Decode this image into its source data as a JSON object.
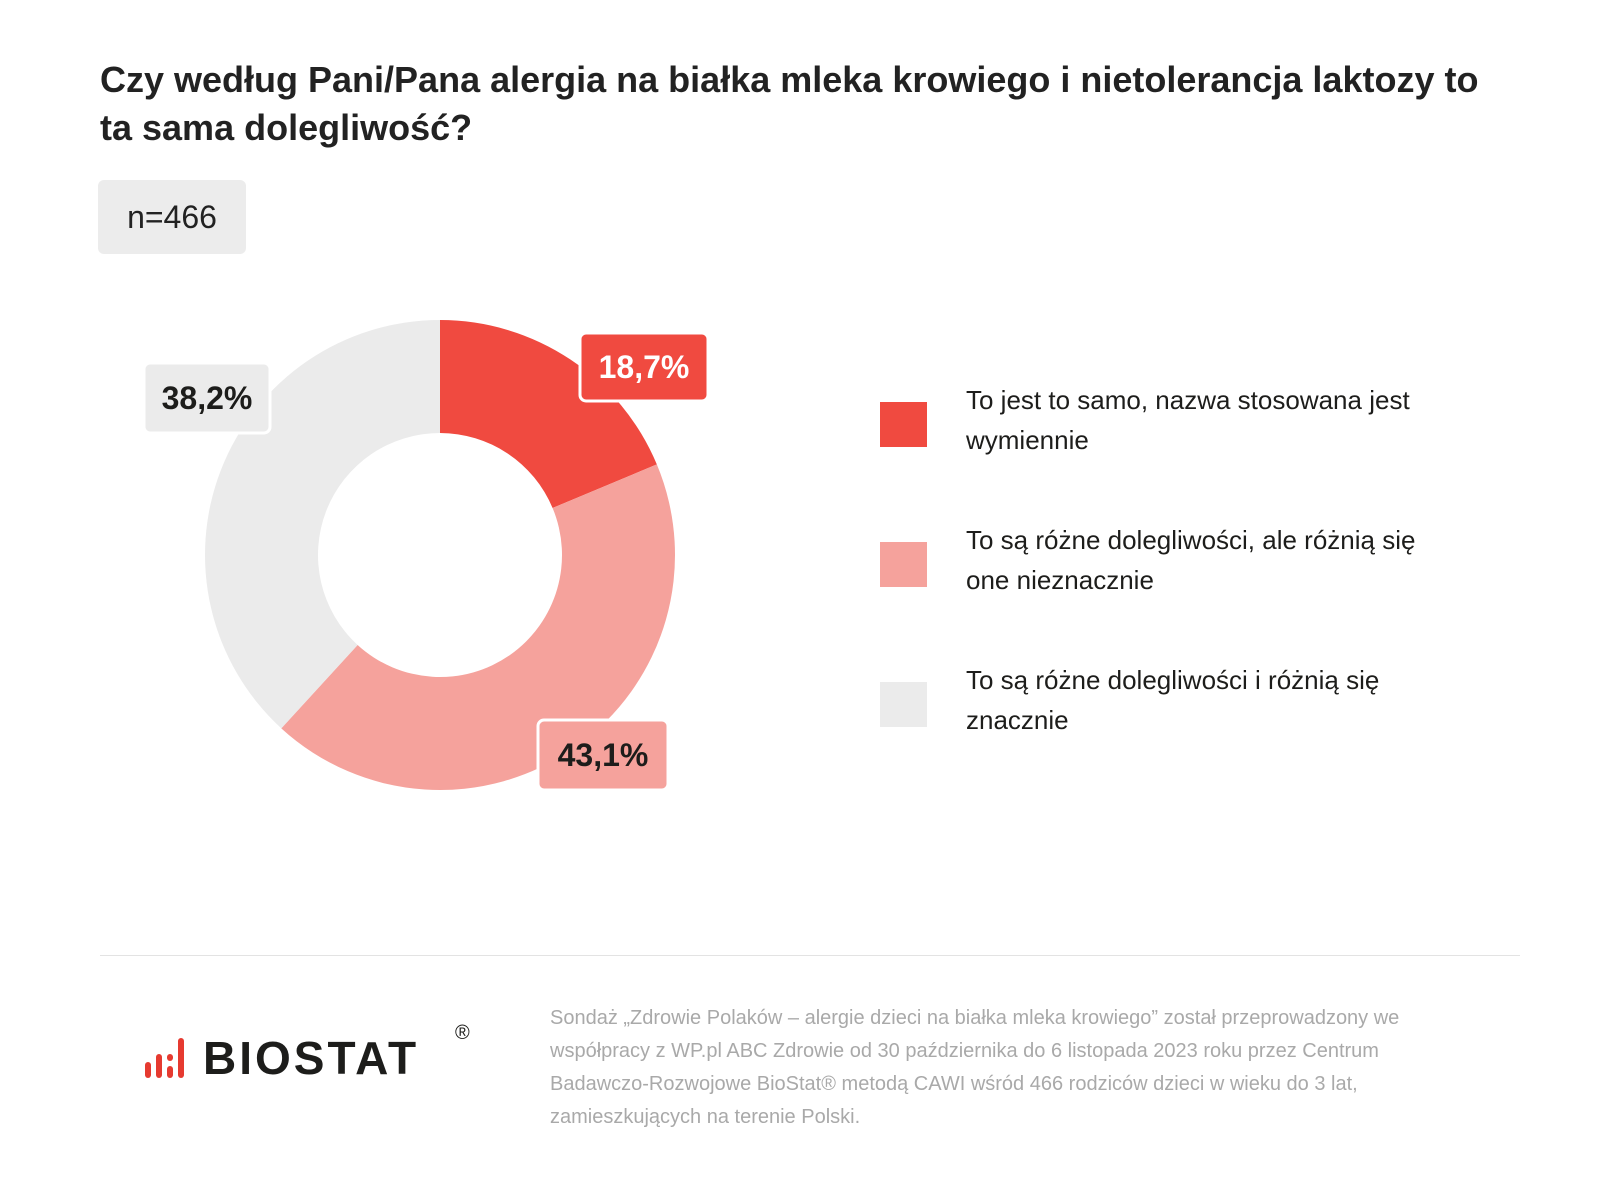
{
  "title": "Czy według Pani/Pana alergia na białka mleka krowiego i nietolerancja laktozy to ta sama dolegliwość?",
  "sample_size": "n=466",
  "chart_data": {
    "type": "pie",
    "title": "Czy według Pani/Pana alergia na białka mleka krowiego i nietolerancja laktozy to ta sama dolegliwość?",
    "donut": true,
    "series": [
      {
        "name": "To jest to samo, nazwa stosowana jest wymiennie",
        "value": 18.7,
        "label": "18,7%",
        "color": "#f04a40",
        "label_text_color": "#ffffff"
      },
      {
        "name": "To są różne dolegliwości, ale różnią się one nieznacznie",
        "value": 43.1,
        "label": "43,1%",
        "color": "#f5a29c",
        "label_text_color": "#1d1d1b"
      },
      {
        "name": "To są różne dolegliwości i różnią się znacznie",
        "value": 38.2,
        "label": "38,2%",
        "color": "#ebebeb",
        "label_text_color": "#1d1d1b"
      }
    ],
    "legend_position": "right"
  },
  "logo": {
    "text": "BIOSTAT",
    "registered": "®"
  },
  "footnote": "Sondaż „Zdrowie Polaków – alergie dzieci na białka mleka krowiego” został przeprowadzony we współpracy z WP.pl ABC Zdrowie od 30 października do 6 listopada 2023 roku przez Centrum Badawczo-Rozwojowe BioStat® metodą CAWI wśród 466 rodziców dzieci w wieku do 3 lat, zamieszkujących na terenie Polski."
}
